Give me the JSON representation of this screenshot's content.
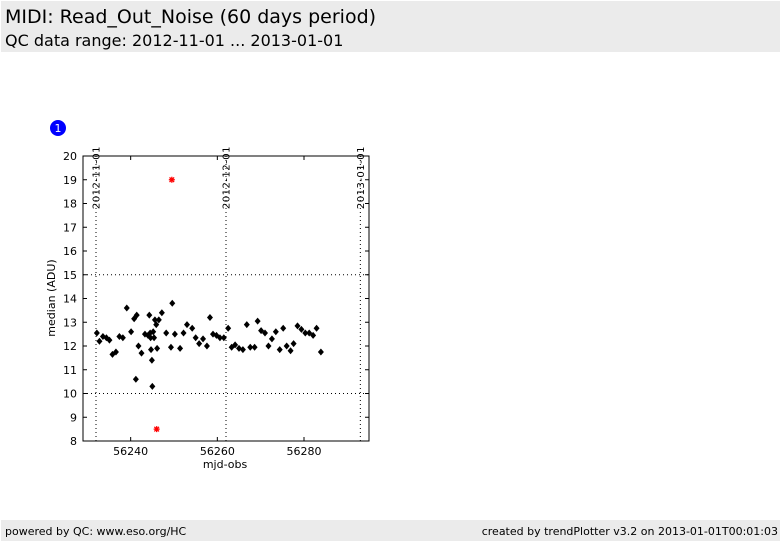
{
  "header": {
    "title": "MIDI: Read_Out_Noise (60 days period)",
    "subtitle": "QC data range: 2012-11-01 ... 2013-01-01"
  },
  "footer": {
    "left": "powered by QC: www.eso.org/HC",
    "right": "created by trendPlotter v3.2 on 2013-01-01T00:01:03"
  },
  "badge": "1",
  "chart_data": {
    "type": "scatter",
    "xlabel": "mjd-obs",
    "ylabel": "median (ADU)",
    "xlim": [
      56229,
      56295
    ],
    "ylim": [
      8,
      20
    ],
    "xticks": [
      56240,
      56260,
      56280
    ],
    "yticks": [
      8,
      9,
      10,
      11,
      12,
      13,
      14,
      15,
      16,
      17,
      18,
      19,
      20
    ],
    "hlines": [
      10,
      15
    ],
    "date_markers": [
      {
        "label": "2012-11-01",
        "x": 56232
      },
      {
        "label": "2012-12-01",
        "x": 56262
      },
      {
        "label": "2013-01-01",
        "x": 56293
      }
    ],
    "series": [
      {
        "color": "#000000",
        "marker": "diamond",
        "points": [
          [
            56232.2,
            12.55
          ],
          [
            56232.8,
            12.2
          ],
          [
            56233.6,
            12.4
          ],
          [
            56234.4,
            12.35
          ],
          [
            56235.1,
            12.25
          ],
          [
            56235.8,
            11.65
          ],
          [
            56236.6,
            11.75
          ],
          [
            56237.4,
            12.4
          ],
          [
            56238.2,
            12.35
          ],
          [
            56239.1,
            13.6
          ],
          [
            56240.1,
            12.6
          ],
          [
            56240.8,
            13.15
          ],
          [
            56241.2,
            10.6
          ],
          [
            56241.4,
            13.3
          ],
          [
            56241.8,
            12.0
          ],
          [
            56242.5,
            11.7
          ],
          [
            56243.3,
            12.5
          ],
          [
            56244.0,
            12.45
          ],
          [
            56244.3,
            13.3
          ],
          [
            56244.5,
            12.55
          ],
          [
            56244.6,
            12.35
          ],
          [
            56244.7,
            11.85
          ],
          [
            56244.9,
            11.4
          ],
          [
            56245.0,
            10.3
          ],
          [
            56245.2,
            12.6
          ],
          [
            56245.4,
            12.35
          ],
          [
            56245.6,
            13.1
          ],
          [
            56245.9,
            12.9
          ],
          [
            56246.1,
            11.9
          ],
          [
            56246.5,
            13.1
          ],
          [
            56247.2,
            13.4
          ],
          [
            56248.2,
            12.55
          ],
          [
            56249.3,
            11.95
          ],
          [
            56249.6,
            13.8
          ],
          [
            56250.2,
            12.5
          ],
          [
            56251.4,
            11.9
          ],
          [
            56252.2,
            12.55
          ],
          [
            56253.0,
            12.9
          ],
          [
            56254.2,
            12.75
          ],
          [
            56255.0,
            12.35
          ],
          [
            56255.8,
            12.1
          ],
          [
            56256.7,
            12.3
          ],
          [
            56257.6,
            12.0
          ],
          [
            56258.3,
            13.2
          ],
          [
            56259.0,
            12.5
          ],
          [
            56259.8,
            12.45
          ],
          [
            56260.6,
            12.35
          ],
          [
            56261.5,
            12.35
          ],
          [
            56262.5,
            12.75
          ],
          [
            56263.3,
            11.95
          ],
          [
            56264.1,
            12.05
          ],
          [
            56265.0,
            11.9
          ],
          [
            56265.9,
            11.85
          ],
          [
            56266.8,
            12.9
          ],
          [
            56267.6,
            11.95
          ],
          [
            56268.6,
            11.95
          ],
          [
            56269.3,
            13.05
          ],
          [
            56270.1,
            12.65
          ],
          [
            56271.0,
            12.55
          ],
          [
            56271.8,
            12.0
          ],
          [
            56272.6,
            12.3
          ],
          [
            56273.5,
            12.6
          ],
          [
            56274.4,
            11.85
          ],
          [
            56275.2,
            12.75
          ],
          [
            56276.0,
            12.0
          ],
          [
            56276.9,
            11.8
          ],
          [
            56277.6,
            12.1
          ],
          [
            56278.5,
            12.85
          ],
          [
            56279.4,
            12.7
          ],
          [
            56280.3,
            12.55
          ],
          [
            56281.2,
            12.55
          ],
          [
            56282.1,
            12.45
          ],
          [
            56282.9,
            12.75
          ],
          [
            56283.9,
            11.75
          ]
        ]
      },
      {
        "color": "#ff0000",
        "marker": "asterisk",
        "points": [
          [
            56246.0,
            8.5
          ],
          [
            56249.5,
            19.0
          ]
        ]
      }
    ]
  }
}
